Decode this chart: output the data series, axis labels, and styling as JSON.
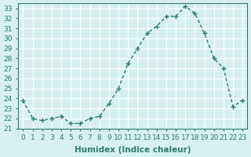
{
  "x": [
    0,
    1,
    2,
    3,
    4,
    5,
    6,
    7,
    8,
    9,
    10,
    11,
    12,
    13,
    14,
    15,
    16,
    17,
    18,
    19,
    20,
    21,
    22,
    23
  ],
  "y": [
    23.8,
    22.0,
    21.8,
    22.0,
    22.2,
    21.5,
    21.5,
    22.0,
    22.2,
    23.5,
    25.0,
    27.5,
    29.0,
    30.5,
    31.2,
    32.2,
    32.2,
    33.2,
    32.5,
    30.5,
    28.0,
    27.0,
    23.2,
    23.8
  ],
  "line_color": "#2e7d6e",
  "marker": "+",
  "bg_color": "#d6f0f0",
  "grid_color": "#ffffff",
  "xlabel": "Humidex (Indice chaleur)",
  "ylabel": "",
  "xlim": [
    -0.5,
    23.5
  ],
  "ylim": [
    21.0,
    33.5
  ],
  "yticks": [
    21,
    22,
    23,
    24,
    25,
    26,
    27,
    28,
    29,
    30,
    31,
    32,
    33
  ],
  "xticks": [
    0,
    1,
    2,
    3,
    4,
    5,
    6,
    7,
    8,
    9,
    10,
    11,
    12,
    13,
    14,
    15,
    16,
    17,
    18,
    19,
    20,
    21,
    22,
    23
  ],
  "tick_fontsize": 6.5,
  "xlabel_fontsize": 7.5,
  "line_width": 1.0,
  "marker_size": 4
}
